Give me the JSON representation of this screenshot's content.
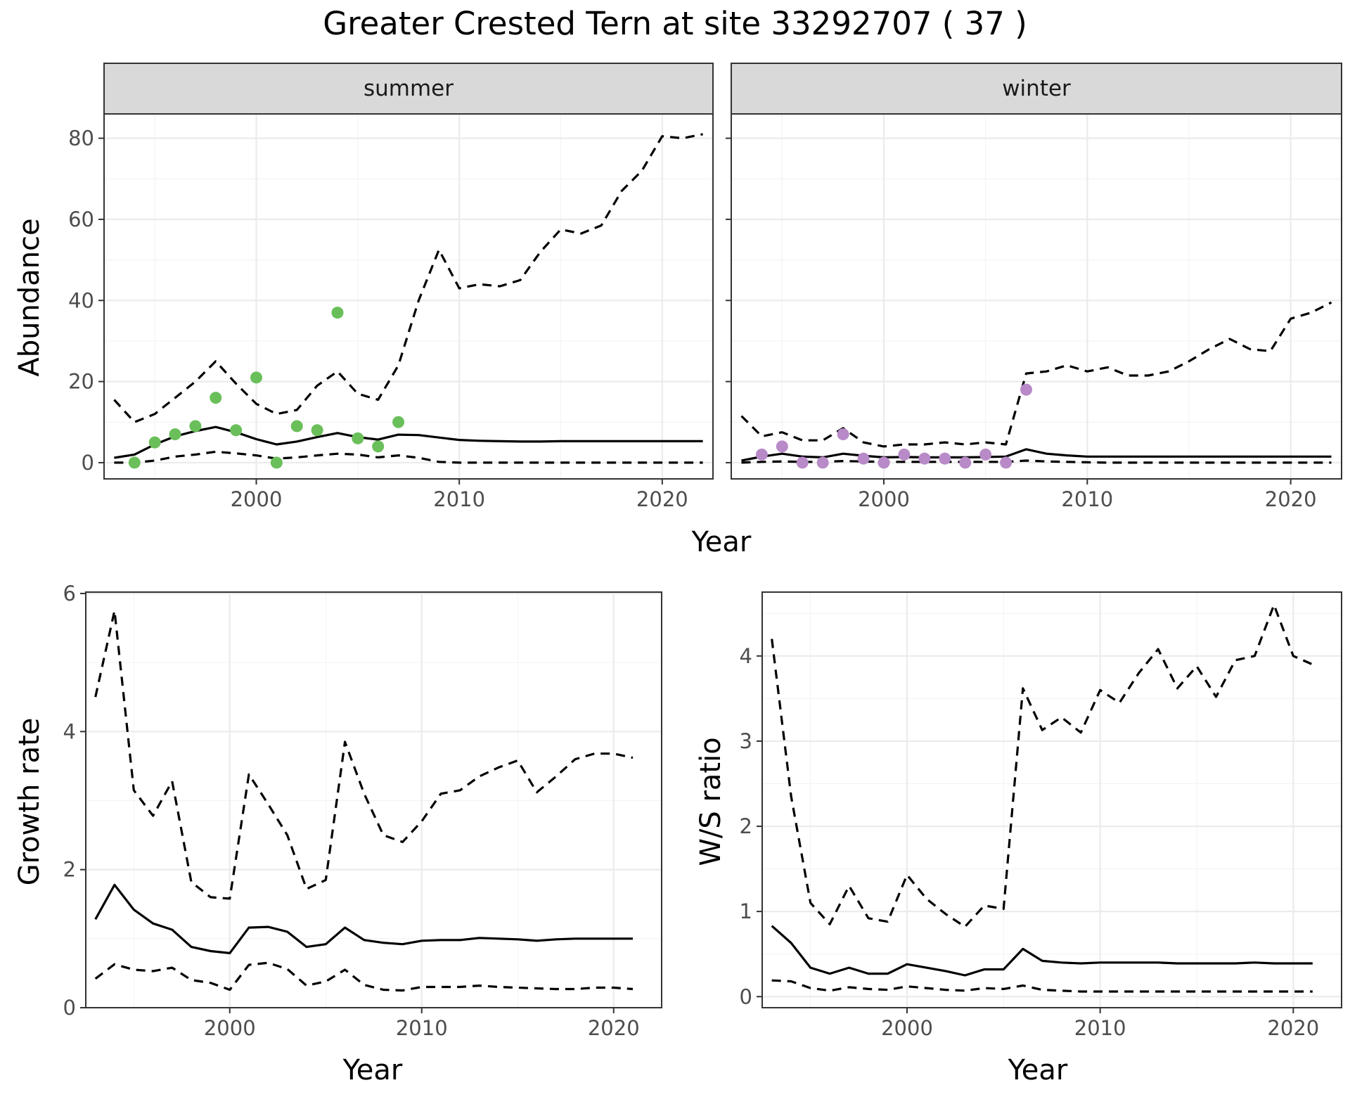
{
  "title": "Greater Crested Tern at site 33292707 ( 37 )",
  "colors": {
    "summer_points": "#6abf5a",
    "winter_points": "#b88ac8",
    "lines": "#000000"
  },
  "chart_data": [
    {
      "type": "line",
      "panel": "summer",
      "strip_label": "summer",
      "xlabel": "Year",
      "ylabel": "Abundance",
      "xlim": [
        1992.5,
        2022.5
      ],
      "ylim": [
        -4,
        86
      ],
      "xticks": [
        2000,
        2010,
        2020
      ],
      "yticks": [
        0,
        20,
        40,
        60,
        80
      ],
      "grid": true,
      "series": [
        {
          "role": "mean",
          "x": [
            1993,
            1994,
            1995,
            1996,
            1997,
            1998,
            1999,
            2000,
            2001,
            2002,
            2003,
            2004,
            2005,
            2006,
            2007,
            2008,
            2009,
            2010,
            2011,
            2012,
            2013,
            2014,
            2015,
            2016,
            2017,
            2018,
            2019,
            2020,
            2021,
            2022
          ],
          "values": [
            1.2,
            2,
            4.5,
            6.5,
            7.8,
            8.8,
            7.5,
            5.8,
            4.5,
            5.2,
            6.3,
            7.3,
            6.3,
            5.7,
            6.9,
            6.8,
            6.2,
            5.6,
            5.4,
            5.3,
            5.2,
            5.2,
            5.3,
            5.3,
            5.3,
            5.3,
            5.3,
            5.3,
            5.3,
            5.3
          ]
        },
        {
          "role": "upper",
          "x": [
            1993,
            1994,
            1995,
            1996,
            1997,
            1998,
            1999,
            2000,
            2001,
            2002,
            2003,
            2004,
            2005,
            2006,
            2007,
            2008,
            2009,
            2010,
            2011,
            2012,
            2013,
            2014,
            2015,
            2016,
            2017,
            2018,
            2019,
            2020,
            2021,
            2022
          ],
          "values": [
            15.5,
            10,
            12,
            16,
            20,
            25,
            19.5,
            14.5,
            12,
            13,
            19,
            22.5,
            17,
            15.5,
            24,
            40,
            52.5,
            43,
            44,
            43.5,
            45,
            52,
            57.5,
            56.5,
            58.5,
            67,
            72,
            80.5,
            80,
            81
          ]
        },
        {
          "role": "lower",
          "x": [
            1993,
            1994,
            1995,
            1996,
            1997,
            1998,
            1999,
            2000,
            2001,
            2002,
            2003,
            2004,
            2005,
            2006,
            2007,
            2008,
            2009,
            2010,
            2011,
            2012,
            2013,
            2014,
            2015,
            2016,
            2017,
            2018,
            2019,
            2020,
            2021,
            2022
          ],
          "values": [
            0,
            0,
            0.5,
            1.5,
            2,
            2.7,
            2.3,
            1.8,
            1,
            1.3,
            1.8,
            2.2,
            2,
            1.3,
            1.8,
            1.2,
            0.2,
            0,
            0,
            0,
            0,
            0,
            0,
            0,
            0,
            0,
            0,
            0,
            0,
            0
          ]
        },
        {
          "role": "observed",
          "x": [
            1994,
            1995,
            1996,
            1997,
            1998,
            1999,
            2000,
            2001,
            2002,
            2003,
            2004,
            2005,
            2006,
            2007
          ],
          "values": [
            0,
            5,
            7,
            9,
            16,
            8,
            21,
            0,
            9,
            8,
            37,
            6,
            4,
            10
          ]
        }
      ]
    },
    {
      "type": "line",
      "panel": "winter",
      "strip_label": "winter",
      "xlabel": "Year",
      "ylabel": "Abundance",
      "xlim": [
        1992.5,
        2022.5
      ],
      "ylim": [
        -4,
        86
      ],
      "xticks": [
        2000,
        2010,
        2020
      ],
      "yticks": [
        0,
        20,
        40,
        60,
        80
      ],
      "grid": true,
      "series": [
        {
          "role": "mean",
          "x": [
            1993,
            1994,
            1995,
            1996,
            1997,
            1998,
            1999,
            2000,
            2001,
            2002,
            2003,
            2004,
            2005,
            2006,
            2007,
            2008,
            2009,
            2010,
            2011,
            2012,
            2013,
            2014,
            2015,
            2016,
            2017,
            2018,
            2019,
            2020,
            2021,
            2022
          ],
          "values": [
            0.5,
            1.5,
            2.2,
            1.5,
            1.3,
            2.2,
            1.7,
            1.3,
            1.4,
            1.3,
            1.3,
            1.3,
            1.4,
            1.5,
            3.3,
            2.2,
            1.8,
            1.5,
            1.5,
            1.5,
            1.5,
            1.5,
            1.5,
            1.5,
            1.5,
            1.5,
            1.5,
            1.5,
            1.5,
            1.5
          ]
        },
        {
          "role": "upper",
          "x": [
            1993,
            1994,
            1995,
            1996,
            1997,
            1998,
            1999,
            2000,
            2001,
            2002,
            2003,
            2004,
            2005,
            2006,
            2007,
            2008,
            2009,
            2010,
            2011,
            2012,
            2013,
            2014,
            2015,
            2016,
            2017,
            2018,
            2019,
            2020,
            2021,
            2022
          ],
          "values": [
            11.5,
            6.5,
            7.5,
            5.5,
            5.5,
            8.5,
            5,
            4,
            4.5,
            4.5,
            5,
            4.5,
            5,
            4.5,
            22,
            22.5,
            24,
            22.5,
            23.5,
            21.5,
            21.5,
            22.5,
            25,
            28,
            30.5,
            28,
            27.5,
            35.5,
            37,
            39.5
          ]
        },
        {
          "role": "lower",
          "x": [
            1993,
            1994,
            1995,
            1996,
            1997,
            1998,
            1999,
            2000,
            2001,
            2002,
            2003,
            2004,
            2005,
            2006,
            2007,
            2008,
            2009,
            2010,
            2011,
            2012,
            2013,
            2014,
            2015,
            2016,
            2017,
            2018,
            2019,
            2020,
            2021,
            2022
          ],
          "values": [
            0,
            0.2,
            0.3,
            0.2,
            0.2,
            0.4,
            0.3,
            0.2,
            0.2,
            0.2,
            0.2,
            0.2,
            0.2,
            0.2,
            0.5,
            0.3,
            0.2,
            0.1,
            0,
            0,
            0,
            0,
            0,
            0,
            0,
            0,
            0,
            0,
            0,
            0
          ]
        },
        {
          "role": "observed",
          "x": [
            1994,
            1995,
            1996,
            1997,
            1998,
            1999,
            2000,
            2001,
            2002,
            2003,
            2004,
            2005,
            2006,
            2007
          ],
          "values": [
            2,
            4,
            0,
            0,
            7,
            1,
            0,
            2,
            1,
            1,
            0,
            2,
            0,
            18
          ]
        }
      ]
    },
    {
      "type": "line",
      "panel": "growth",
      "xlabel": "Year",
      "ylabel": "Growth rate",
      "xlim": [
        1992.5,
        2022.5
      ],
      "ylim": [
        0,
        6.02
      ],
      "xticks": [
        2000,
        2010,
        2020
      ],
      "yticks": [
        0,
        2,
        4,
        6
      ],
      "grid": true,
      "series": [
        {
          "role": "mean",
          "x": [
            1993,
            1994,
            1995,
            1996,
            1997,
            1998,
            1999,
            2000,
            2001,
            2002,
            2003,
            2004,
            2005,
            2006,
            2007,
            2008,
            2009,
            2010,
            2011,
            2012,
            2013,
            2014,
            2015,
            2016,
            2017,
            2018,
            2019,
            2020,
            2021
          ],
          "values": [
            1.28,
            1.78,
            1.42,
            1.22,
            1.13,
            0.88,
            0.82,
            0.79,
            1.16,
            1.17,
            1.1,
            0.88,
            0.92,
            1.16,
            0.98,
            0.94,
            0.92,
            0.97,
            0.98,
            0.98,
            1.01,
            1.0,
            0.99,
            0.97,
            0.99,
            1.0,
            1.0,
            1.0,
            1.0
          ]
        },
        {
          "role": "upper",
          "x": [
            1993,
            1994,
            1995,
            1996,
            1997,
            1998,
            1999,
            2000,
            2001,
            2002,
            2003,
            2004,
            2005,
            2006,
            2007,
            2008,
            2009,
            2010,
            2011,
            2012,
            2013,
            2014,
            2015,
            2016,
            2017,
            2018,
            2019,
            2020,
            2021
          ],
          "values": [
            4.5,
            5.75,
            3.15,
            2.78,
            3.28,
            1.82,
            1.6,
            1.58,
            3.38,
            2.95,
            2.5,
            1.72,
            1.85,
            3.85,
            3.1,
            2.5,
            2.4,
            2.7,
            3.1,
            3.15,
            3.35,
            3.48,
            3.58,
            3.12,
            3.35,
            3.6,
            3.68,
            3.68,
            3.62
          ]
        },
        {
          "role": "lower",
          "x": [
            1993,
            1994,
            1995,
            1996,
            1997,
            1998,
            1999,
            2000,
            2001,
            2002,
            2003,
            2004,
            2005,
            2006,
            2007,
            2008,
            2009,
            2010,
            2011,
            2012,
            2013,
            2014,
            2015,
            2016,
            2017,
            2018,
            2019,
            2020,
            2021
          ],
          "values": [
            0.42,
            0.63,
            0.55,
            0.53,
            0.58,
            0.4,
            0.36,
            0.26,
            0.62,
            0.65,
            0.56,
            0.32,
            0.38,
            0.55,
            0.33,
            0.26,
            0.25,
            0.3,
            0.3,
            0.3,
            0.32,
            0.3,
            0.29,
            0.28,
            0.27,
            0.27,
            0.29,
            0.29,
            0.27
          ]
        }
      ]
    },
    {
      "type": "line",
      "panel": "ws_ratio",
      "xlabel": "Year",
      "ylabel": "W/S ratio",
      "xlim": [
        1992.5,
        2022.5
      ],
      "ylim": [
        -0.13,
        4.75
      ],
      "xticks": [
        2000,
        2010,
        2020
      ],
      "yticks": [
        0,
        1,
        2,
        3,
        4
      ],
      "grid": true,
      "series": [
        {
          "role": "mean",
          "x": [
            1993,
            1994,
            1995,
            1996,
            1997,
            1998,
            1999,
            2000,
            2001,
            2002,
            2003,
            2004,
            2005,
            2006,
            2007,
            2008,
            2009,
            2010,
            2011,
            2012,
            2013,
            2014,
            2015,
            2016,
            2017,
            2018,
            2019,
            2020,
            2021
          ],
          "values": [
            0.83,
            0.63,
            0.34,
            0.27,
            0.34,
            0.27,
            0.27,
            0.38,
            0.34,
            0.3,
            0.25,
            0.32,
            0.32,
            0.56,
            0.42,
            0.4,
            0.39,
            0.4,
            0.4,
            0.4,
            0.4,
            0.39,
            0.39,
            0.39,
            0.39,
            0.4,
            0.39,
            0.39,
            0.39
          ]
        },
        {
          "role": "upper",
          "x": [
            1993,
            1994,
            1995,
            1996,
            1997,
            1998,
            1999,
            2000,
            2001,
            2002,
            2003,
            2004,
            2005,
            2006,
            2007,
            2008,
            2009,
            2010,
            2011,
            2012,
            2013,
            2014,
            2015,
            2016,
            2017,
            2018,
            2019,
            2020,
            2021
          ],
          "values": [
            4.2,
            2.35,
            1.1,
            0.85,
            1.3,
            0.92,
            0.88,
            1.43,
            1.15,
            0.97,
            0.82,
            1.07,
            1.03,
            3.62,
            3.13,
            3.28,
            3.1,
            3.6,
            3.45,
            3.8,
            4.08,
            3.62,
            3.88,
            3.52,
            3.95,
            4.0,
            4.6,
            4.0,
            3.9
          ]
        },
        {
          "role": "lower",
          "x": [
            1993,
            1994,
            1995,
            1996,
            1997,
            1998,
            1999,
            2000,
            2001,
            2002,
            2003,
            2004,
            2005,
            2006,
            2007,
            2008,
            2009,
            2010,
            2011,
            2012,
            2013,
            2014,
            2015,
            2016,
            2017,
            2018,
            2019,
            2020,
            2021
          ],
          "values": [
            0.19,
            0.18,
            0.1,
            0.07,
            0.11,
            0.09,
            0.08,
            0.12,
            0.1,
            0.08,
            0.07,
            0.1,
            0.09,
            0.13,
            0.08,
            0.07,
            0.06,
            0.06,
            0.06,
            0.06,
            0.06,
            0.06,
            0.06,
            0.06,
            0.06,
            0.06,
            0.06,
            0.06,
            0.06
          ]
        }
      ]
    }
  ]
}
